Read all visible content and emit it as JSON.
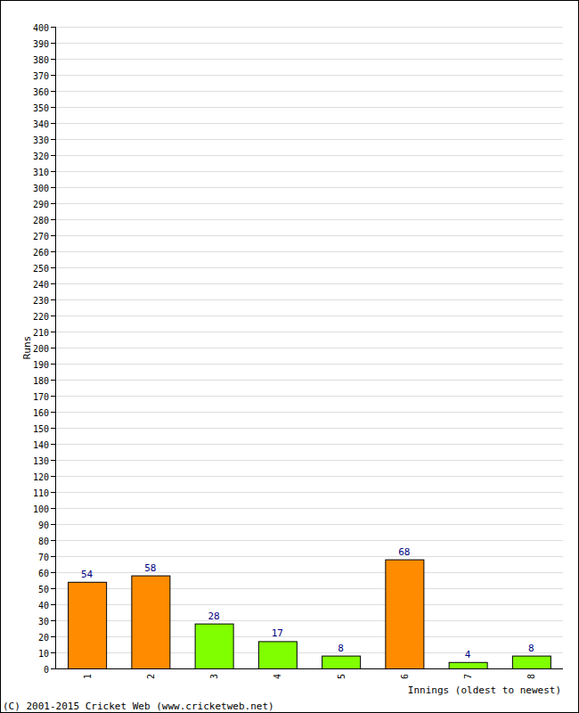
{
  "chart_data": {
    "type": "bar",
    "categories": [
      "1",
      "2",
      "3",
      "4",
      "5",
      "6",
      "7",
      "8"
    ],
    "values": [
      54,
      58,
      28,
      17,
      8,
      68,
      4,
      8
    ],
    "colors": [
      "#ff8c00",
      "#ff8c00",
      "#80ff00",
      "#80ff00",
      "#80ff00",
      "#ff8c00",
      "#80ff00",
      "#80ff00"
    ],
    "ylim": [
      0,
      400
    ],
    "yticks": [
      0,
      10,
      20,
      30,
      40,
      50,
      60,
      70,
      80,
      90,
      100,
      110,
      120,
      130,
      140,
      150,
      160,
      170,
      180,
      190,
      200,
      210,
      220,
      230,
      240,
      250,
      260,
      270,
      280,
      290,
      300,
      310,
      320,
      330,
      340,
      350,
      360,
      370,
      380,
      390,
      400
    ],
    "grid": true,
    "data_labels": true,
    "x_label": "Innings (oldest to newest)",
    "y_label": "Runs",
    "annotations": [
      "(C) 2001-2015 Cricket Web (www.cricketweb.net)"
    ]
  }
}
